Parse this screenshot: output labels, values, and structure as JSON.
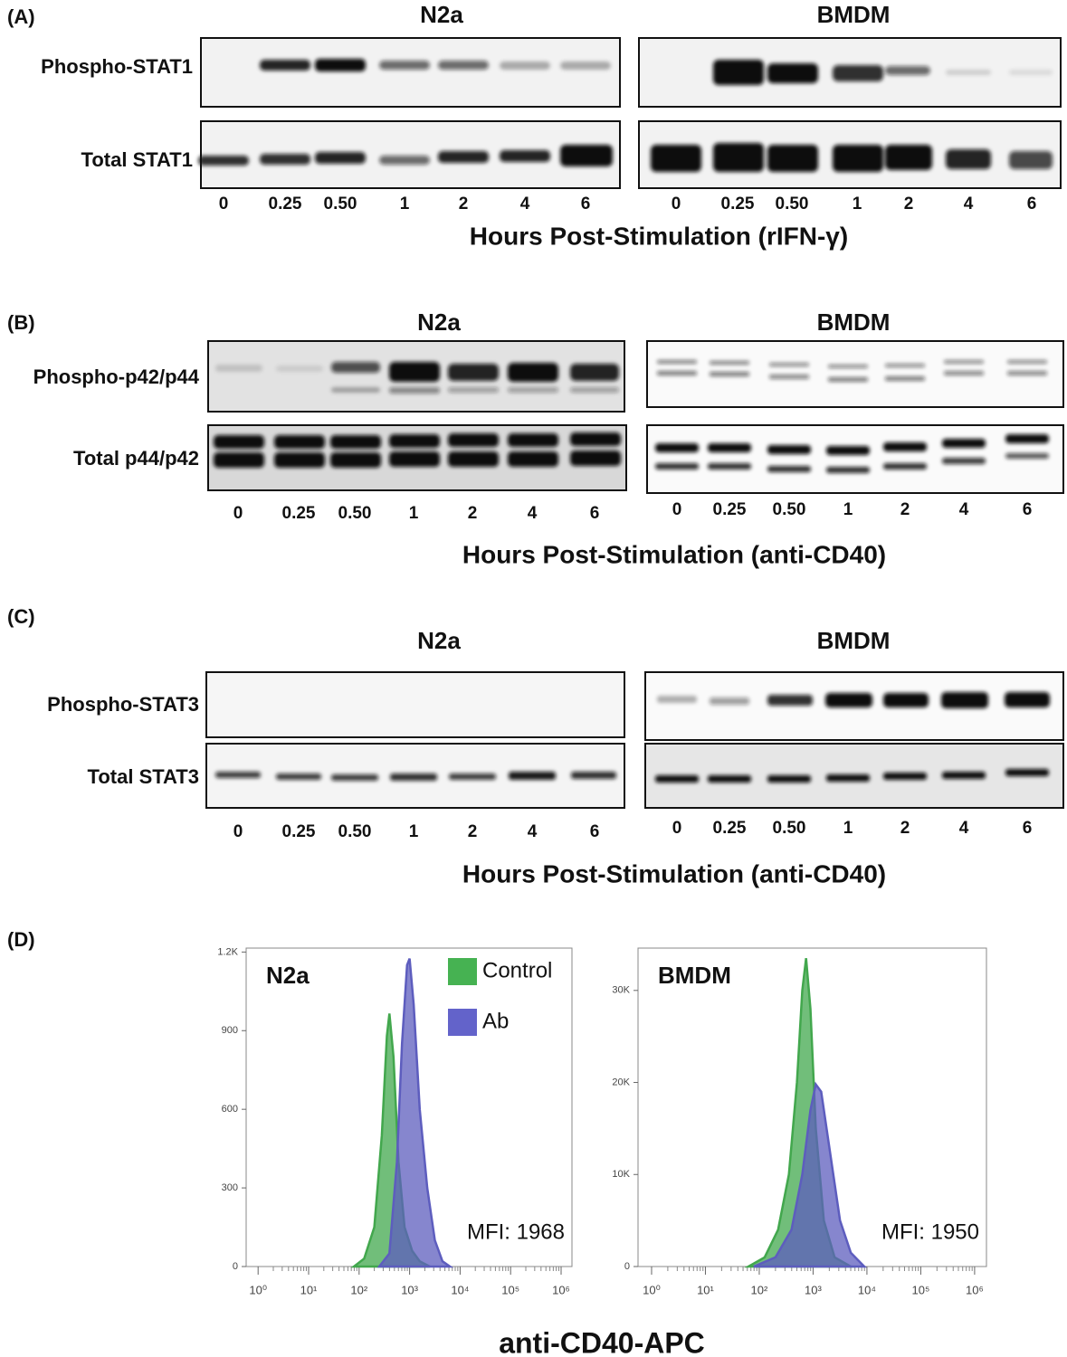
{
  "panels": [
    {
      "label": "(A)",
      "cell_lines": [
        "N2a",
        "BMDM"
      ],
      "rows": [
        "Phospho-STAT1",
        "Total STAT1"
      ],
      "lanes": [
        "0",
        "0.25",
        "0.50",
        "1",
        "2",
        "4",
        "6"
      ],
      "x_label": "Hours Post-Stimulation (rIFN-γ)"
    },
    {
      "label": "(B)",
      "cell_lines": [
        "N2a",
        "BMDM"
      ],
      "rows": [
        "Phospho-p42/p44",
        "Total p44/p42"
      ],
      "lanes": [
        "0",
        "0.25",
        "0.50",
        "1",
        "2",
        "4",
        "6"
      ],
      "x_label": "Hours Post-Stimulation (anti-CD40)"
    },
    {
      "label": "(C)",
      "cell_lines": [
        "N2a",
        "BMDM"
      ],
      "rows": [
        "Phospho-STAT3",
        "Total STAT3"
      ],
      "lanes": [
        "0",
        "0.25",
        "0.50",
        "1",
        "2",
        "4",
        "6"
      ],
      "x_label": "Hours Post-Stimulation (anti-CD40)"
    }
  ],
  "panel_d": {
    "label": "(D)",
    "x_label": "anti-CD40-APC",
    "charts": [
      {
        "type": "area",
        "title": "N2a",
        "annotation": "MFI: 1968",
        "x_scale": "log",
        "legend": "top-right",
        "xlim": [
          0.58,
          1640000
        ],
        "xticks": [
          {
            "value": 1,
            "label": "10⁰"
          },
          {
            "value": 10,
            "label": "10¹"
          },
          {
            "value": 100,
            "label": "10²"
          },
          {
            "value": 1000,
            "label": "10³"
          },
          {
            "value": 10000,
            "label": "10⁴"
          },
          {
            "value": 100000,
            "label": "10⁵"
          },
          {
            "value": 1000000,
            "label": "10⁶"
          }
        ],
        "ylim": [
          0,
          1215
        ],
        "yticks": [
          0,
          300,
          600,
          900,
          {
            "value": 1200,
            "label": "1.2K"
          }
        ],
        "series": [
          {
            "name": "Control",
            "color": "#52d160",
            "x": [
              79,
              126,
              200,
              282,
              355,
              398,
              479,
              603,
              794,
              1122,
              1585,
              2512
            ],
            "values": [
              0,
              30,
              150,
              500,
              880,
              965,
              800,
              400,
              150,
              60,
              20,
              0
            ]
          },
          {
            "name": "Ab",
            "color": "#7474ee",
            "x": [
              251,
              398,
              562,
              708,
              891,
              1000,
              1202,
              1585,
              2239,
              3162,
              4467,
              6310
            ],
            "values": [
              0,
              50,
              400,
              850,
              1150,
              1175,
              1000,
              600,
              300,
              100,
              20,
              0
            ]
          }
        ]
      },
      {
        "type": "area",
        "title": "BMDM",
        "annotation": "MFI: 1950",
        "x_scale": "log",
        "xlim": [
          0.56,
          1660000
        ],
        "xticks": [
          {
            "value": 1,
            "label": "10⁰"
          },
          {
            "value": 10,
            "label": "10¹"
          },
          {
            "value": 100,
            "label": "10²"
          },
          {
            "value": 1000,
            "label": "10³"
          },
          {
            "value": 10000,
            "label": "10⁴"
          },
          {
            "value": 100000,
            "label": "10⁵"
          },
          {
            "value": 1000000,
            "label": "10⁶"
          }
        ],
        "ylim": [
          0,
          34600
        ],
        "yticks": [
          0,
          {
            "value": 10000,
            "label": "10K"
          },
          {
            "value": 20000,
            "label": "20K"
          },
          {
            "value": 30000,
            "label": "30K"
          }
        ],
        "series": [
          {
            "name": "Control",
            "color": "#52d160",
            "x": [
              63,
              126,
              224,
              355,
              501,
              631,
              741,
              891,
              1122,
              1585,
              2512,
              5012
            ],
            "values": [
              0,
              1000,
              4000,
              10000,
              20000,
              30000,
              33500,
              28000,
              15000,
              5000,
              1000,
              0
            ]
          },
          {
            "name": "Ab",
            "color": "#7474ee",
            "x": [
              79,
              200,
              398,
              631,
              891,
              1122,
              1413,
              1995,
              3162,
              5012,
              8913
            ],
            "values": [
              0,
              1000,
              4000,
              10000,
              17000,
              19800,
              19000,
              13000,
              5000,
              1500,
              0
            ]
          }
        ]
      }
    ]
  }
}
